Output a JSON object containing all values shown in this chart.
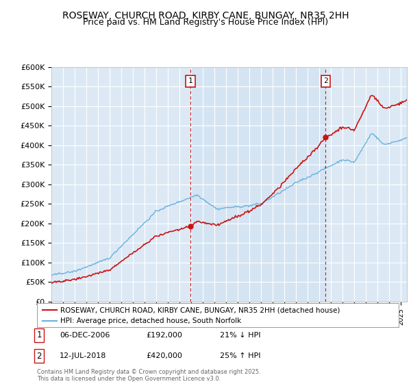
{
  "title": "ROSEWAY, CHURCH ROAD, KIRBY CANE, BUNGAY, NR35 2HH",
  "subtitle": "Price paid vs. HM Land Registry's House Price Index (HPI)",
  "ylabel_ticks": [
    "£0",
    "£50K",
    "£100K",
    "£150K",
    "£200K",
    "£250K",
    "£300K",
    "£350K",
    "£400K",
    "£450K",
    "£500K",
    "£550K",
    "£600K"
  ],
  "ytick_values": [
    0,
    50000,
    100000,
    150000,
    200000,
    250000,
    300000,
    350000,
    400000,
    450000,
    500000,
    550000,
    600000
  ],
  "xlim_start": 1995.0,
  "xlim_end": 2025.5,
  "ylim_min": 0,
  "ylim_max": 600000,
  "plot_bg_color": "#dce9f5",
  "shade_color": "#c8dcf0",
  "hpi_color": "#6ab0de",
  "price_color": "#cc1111",
  "sale1_date": 2006.92,
  "sale1_price": 192000,
  "sale2_date": 2018.53,
  "sale2_price": 420000,
  "legend_line1": "ROSEWAY, CHURCH ROAD, KIRBY CANE, BUNGAY, NR35 2HH (detached house)",
  "legend_line2": "HPI: Average price, detached house, South Norfolk",
  "footer": "Contains HM Land Registry data © Crown copyright and database right 2025.\nThis data is licensed under the Open Government Licence v3.0.",
  "title_fontsize": 10,
  "subtitle_fontsize": 9
}
